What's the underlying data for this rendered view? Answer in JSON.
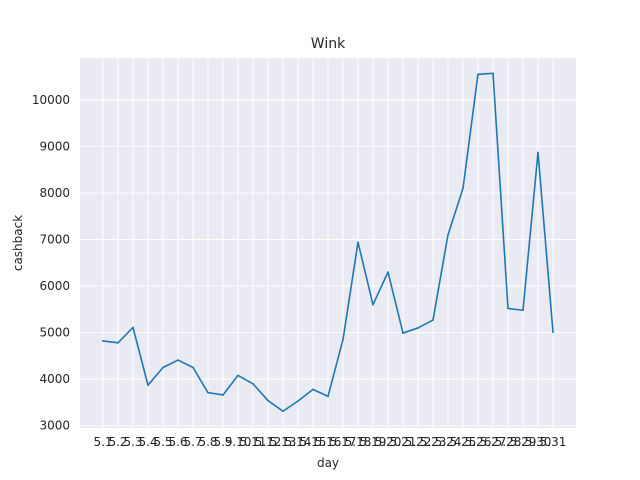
{
  "chart_data": {
    "type": "line",
    "title": "Wink",
    "xlabel": "day",
    "ylabel": "cashback",
    "categories": [
      "5.1",
      "5.2",
      "5.3",
      "5.4",
      "5.5",
      "5.6",
      "5.7",
      "5.8",
      "5.9",
      "5.10",
      "5.11",
      "5.12",
      "5.13",
      "5.14",
      "5.15",
      "5.16",
      "5.17",
      "5.18",
      "5.19",
      "5.20",
      "5.21",
      "5.22",
      "5.23",
      "5.24",
      "5.25",
      "5.26",
      "5.27",
      "5.28",
      "5.29",
      "5.30",
      "5.31"
    ],
    "series": [
      {
        "color": "#1f77b4",
        "values": [
          4820,
          4780,
          5110,
          3870,
          4250,
          4410,
          4250,
          3710,
          3660,
          4080,
          3900,
          3540,
          3310,
          3530,
          3780,
          3630,
          4850,
          6940,
          5600,
          6300,
          4990,
          5100,
          5270,
          7100,
          8100,
          10550,
          10570,
          5520,
          5480,
          8870,
          5010
        ]
      }
    ],
    "ylim": [
      2950,
      10900
    ],
    "yticks": [
      3000,
      4000,
      5000,
      6000,
      7000,
      8000,
      9000,
      10000
    ],
    "grid": true,
    "legend": "none",
    "background_color": "#eaeaf2"
  }
}
